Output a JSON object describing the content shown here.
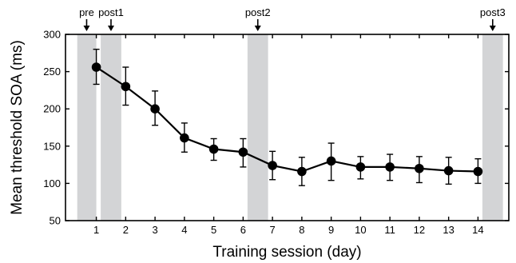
{
  "chart_data": {
    "type": "line",
    "title": "",
    "xlabel": "Training session (day)",
    "ylabel": "Mean threshold SOA (ms)",
    "xlim": [
      -0.05,
      15.05
    ],
    "ylim": [
      50,
      300
    ],
    "x_ticks": [
      1,
      2,
      3,
      4,
      5,
      6,
      7,
      8,
      9,
      10,
      11,
      12,
      13,
      14
    ],
    "y_ticks": [
      50,
      100,
      150,
      200,
      250,
      300
    ],
    "grid": false,
    "legend": "none",
    "series": [
      {
        "x": [
          1,
          2,
          3,
          4,
          5,
          6,
          7,
          8,
          9,
          10,
          11,
          12,
          13,
          14
        ],
        "y": [
          256,
          230,
          200,
          161,
          146,
          142,
          124,
          116,
          130,
          122,
          122,
          120,
          117,
          116
        ],
        "error_low": [
          233,
          205,
          178,
          142,
          131,
          122,
          105,
          97,
          104,
          106,
          104,
          101,
          99,
          100
        ],
        "error_high": [
          280,
          256,
          224,
          181,
          160,
          160,
          143,
          135,
          154,
          136,
          139,
          136,
          135,
          133
        ]
      }
    ],
    "shaded_bands": [
      {
        "label": "pre",
        "x0": 0.35,
        "x1": 1.0
      },
      {
        "label": "post1",
        "x0": 1.15,
        "x1": 1.85
      },
      {
        "label": "post2",
        "x0": 6.15,
        "x1": 6.85
      },
      {
        "label": "post3",
        "x0": 14.15,
        "x1": 14.85
      }
    ],
    "annotations": [
      {
        "label": "pre",
        "x": 0.67
      },
      {
        "label": "post1",
        "x": 1.5
      },
      {
        "label": "post2",
        "x": 6.5
      },
      {
        "label": "post3",
        "x": 14.5
      }
    ],
    "colors": {
      "line": "#000000",
      "marker": "#000000",
      "band": "#d3d4d6"
    }
  }
}
